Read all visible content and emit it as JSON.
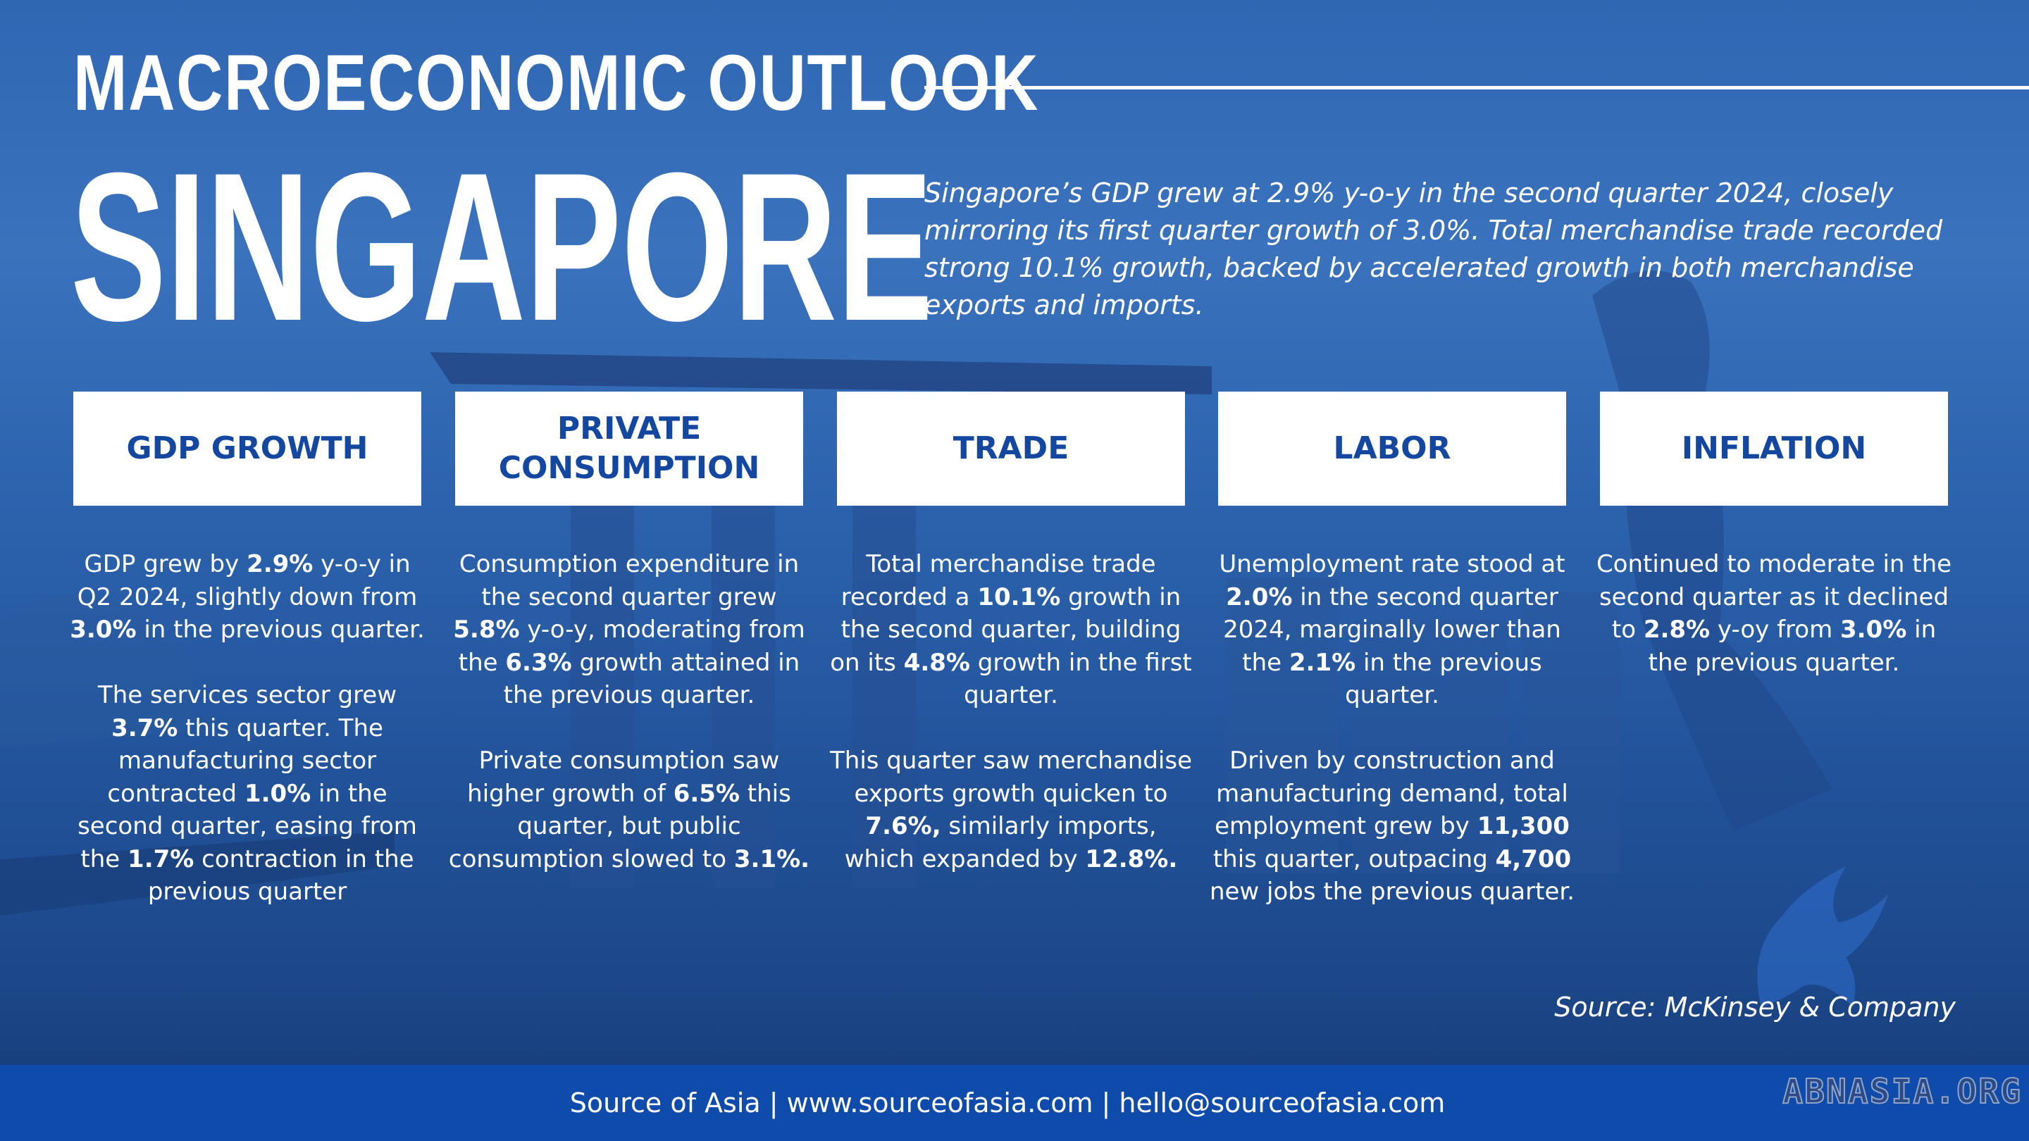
{
  "header": {
    "title_top": "MACROECONOMIC OUTLOOK",
    "title_main": "SINGAPORE",
    "intro": "Singapore’s GDP grew at 2.9% y-o-y in the second quarter 2024, closely mirroring its first quarter growth of 3.0%. Total merchandise trade recorded strong 10.1% growth, backed by accelerated growth in both merchandise exports and imports."
  },
  "columns": [
    {
      "heading": "GDP GROWTH",
      "paragraphs": [
        [
          {
            "t": "GDP grew by "
          },
          {
            "t": "2.9%",
            "b": true
          },
          {
            "t": " y-o-y in Q2 2024, slightly down from "
          },
          {
            "t": "3.0%",
            "b": true
          },
          {
            "t": " in the previous quarter."
          }
        ],
        [
          {
            "t": "The services sector grew "
          },
          {
            "t": "3.7%",
            "b": true
          },
          {
            "t": " this quarter. The manufacturing sector contracted "
          },
          {
            "t": "1.0%",
            "b": true
          },
          {
            "t": " in the second quarter, easing from the "
          },
          {
            "t": "1.7%",
            "b": true
          },
          {
            "t": " contraction in the previous quarter"
          }
        ]
      ]
    },
    {
      "heading": "PRIVATE CONSUMPTION",
      "paragraphs": [
        [
          {
            "t": "Consumption expenditure in the second quarter grew "
          },
          {
            "t": "5.8%",
            "b": true
          },
          {
            "t": " y-o-y, moderating from the "
          },
          {
            "t": "6.3%",
            "b": true
          },
          {
            "t": " growth attained in the previous quarter."
          }
        ],
        [
          {
            "t": "Private consumption saw higher growth of "
          },
          {
            "t": "6.5%",
            "b": true
          },
          {
            "t": " this quarter, but public consumption slowed to "
          },
          {
            "t": "3.1%.",
            "b": true
          }
        ]
      ]
    },
    {
      "heading": "TRADE",
      "paragraphs": [
        [
          {
            "t": "Total merchandise trade recorded a "
          },
          {
            "t": "10.1%",
            "b": true
          },
          {
            "t": " growth in the second quarter, building on its "
          },
          {
            "t": "4.8%",
            "b": true
          },
          {
            "t": " growth in the first quarter."
          }
        ],
        [
          {
            "t": "This quarter saw merchandise exports growth quicken to "
          },
          {
            "t": "7.6%,",
            "b": true
          },
          {
            "t": " similarly imports, which expanded by "
          },
          {
            "t": "12.8%.",
            "b": true
          }
        ]
      ]
    },
    {
      "heading": "LABOR",
      "paragraphs": [
        [
          {
            "t": "Unemployment rate stood at "
          },
          {
            "t": "2.0%",
            "b": true
          },
          {
            "t": " in the second quarter 2024, marginally lower than the "
          },
          {
            "t": "2.1%",
            "b": true
          },
          {
            "t": " in the previous quarter."
          }
        ],
        [
          {
            "t": "Driven by construction and manufacturing demand, total employment grew by "
          },
          {
            "t": "11,300",
            "b": true
          },
          {
            "t": " this quarter, outpacing "
          },
          {
            "t": "4,700",
            "b": true
          },
          {
            "t": " new jobs the previous quarter."
          }
        ]
      ]
    },
    {
      "heading": "INFLATION",
      "paragraphs": [
        [
          {
            "t": "Continued to moderate in the second quarter as it declined to "
          },
          {
            "t": "2.8%",
            "b": true
          },
          {
            "t": " y-oy from "
          },
          {
            "t": "3.0%",
            "b": true
          },
          {
            "t": " in the previous quarter."
          }
        ]
      ]
    }
  ],
  "source_note": "Source: McKinsey & Company",
  "footer": {
    "text": "Source of Asia | www.sourceofasia.com | hello@sourceofasia.com",
    "watermark": "ABNASIA.ORG"
  },
  "colors": {
    "background": "#2c62ad",
    "heading_text": "#1448a0",
    "footer_bar": "#0e4bab"
  }
}
